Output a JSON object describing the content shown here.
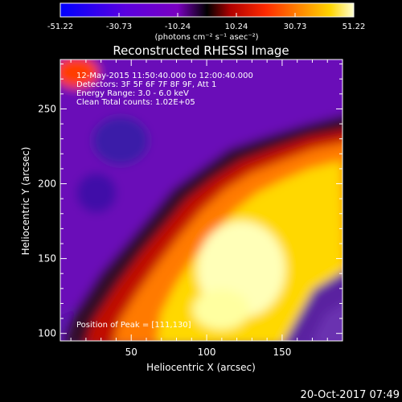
{
  "colorbar": {
    "ticks": [
      "-51.22",
      "-30.73",
      "-10.24",
      "10.24",
      "30.73",
      "51.22"
    ],
    "unit_label": "(photons cm⁻² s⁻¹ asec⁻²)",
    "colors": [
      "#0000ff",
      "#5a00e0",
      "#7a00c0",
      "#000000",
      "#b00000",
      "#ff2a00",
      "#ff8a00",
      "#ffd400",
      "#ffffd0"
    ]
  },
  "chart_data": {
    "type": "heatmap",
    "title": "Reconstructed RHESSI Image",
    "xlabel": "Heliocentric X (arcsec)",
    "ylabel": "Heliocentric Y (arcsec)",
    "xlim": [
      3,
      190
    ],
    "ylim": [
      95,
      283
    ],
    "xticks": [
      "50",
      "100",
      "150"
    ],
    "yticks": [
      "100",
      "150",
      "200",
      "250"
    ],
    "annotations": [
      "12-May-2015 11:50:40.000 to 12:00:40.000",
      "Detectors: 3F 5F 6F 7F 8F 9F, Att 1",
      "Energy Range: 3.0 - 6.0 keV",
      "Clean     Total counts: 1.02E+05"
    ],
    "peak_label": "Position of Peak = [111,130]",
    "peak_position": [
      111,
      130
    ],
    "features": [
      {
        "x": 45,
        "y": 230,
        "level": -0.55
      },
      {
        "x": 111,
        "y": 130,
        "level": 1.0
      }
    ]
  },
  "footer": {
    "timestamp": "20-Oct-2017 07:49"
  }
}
